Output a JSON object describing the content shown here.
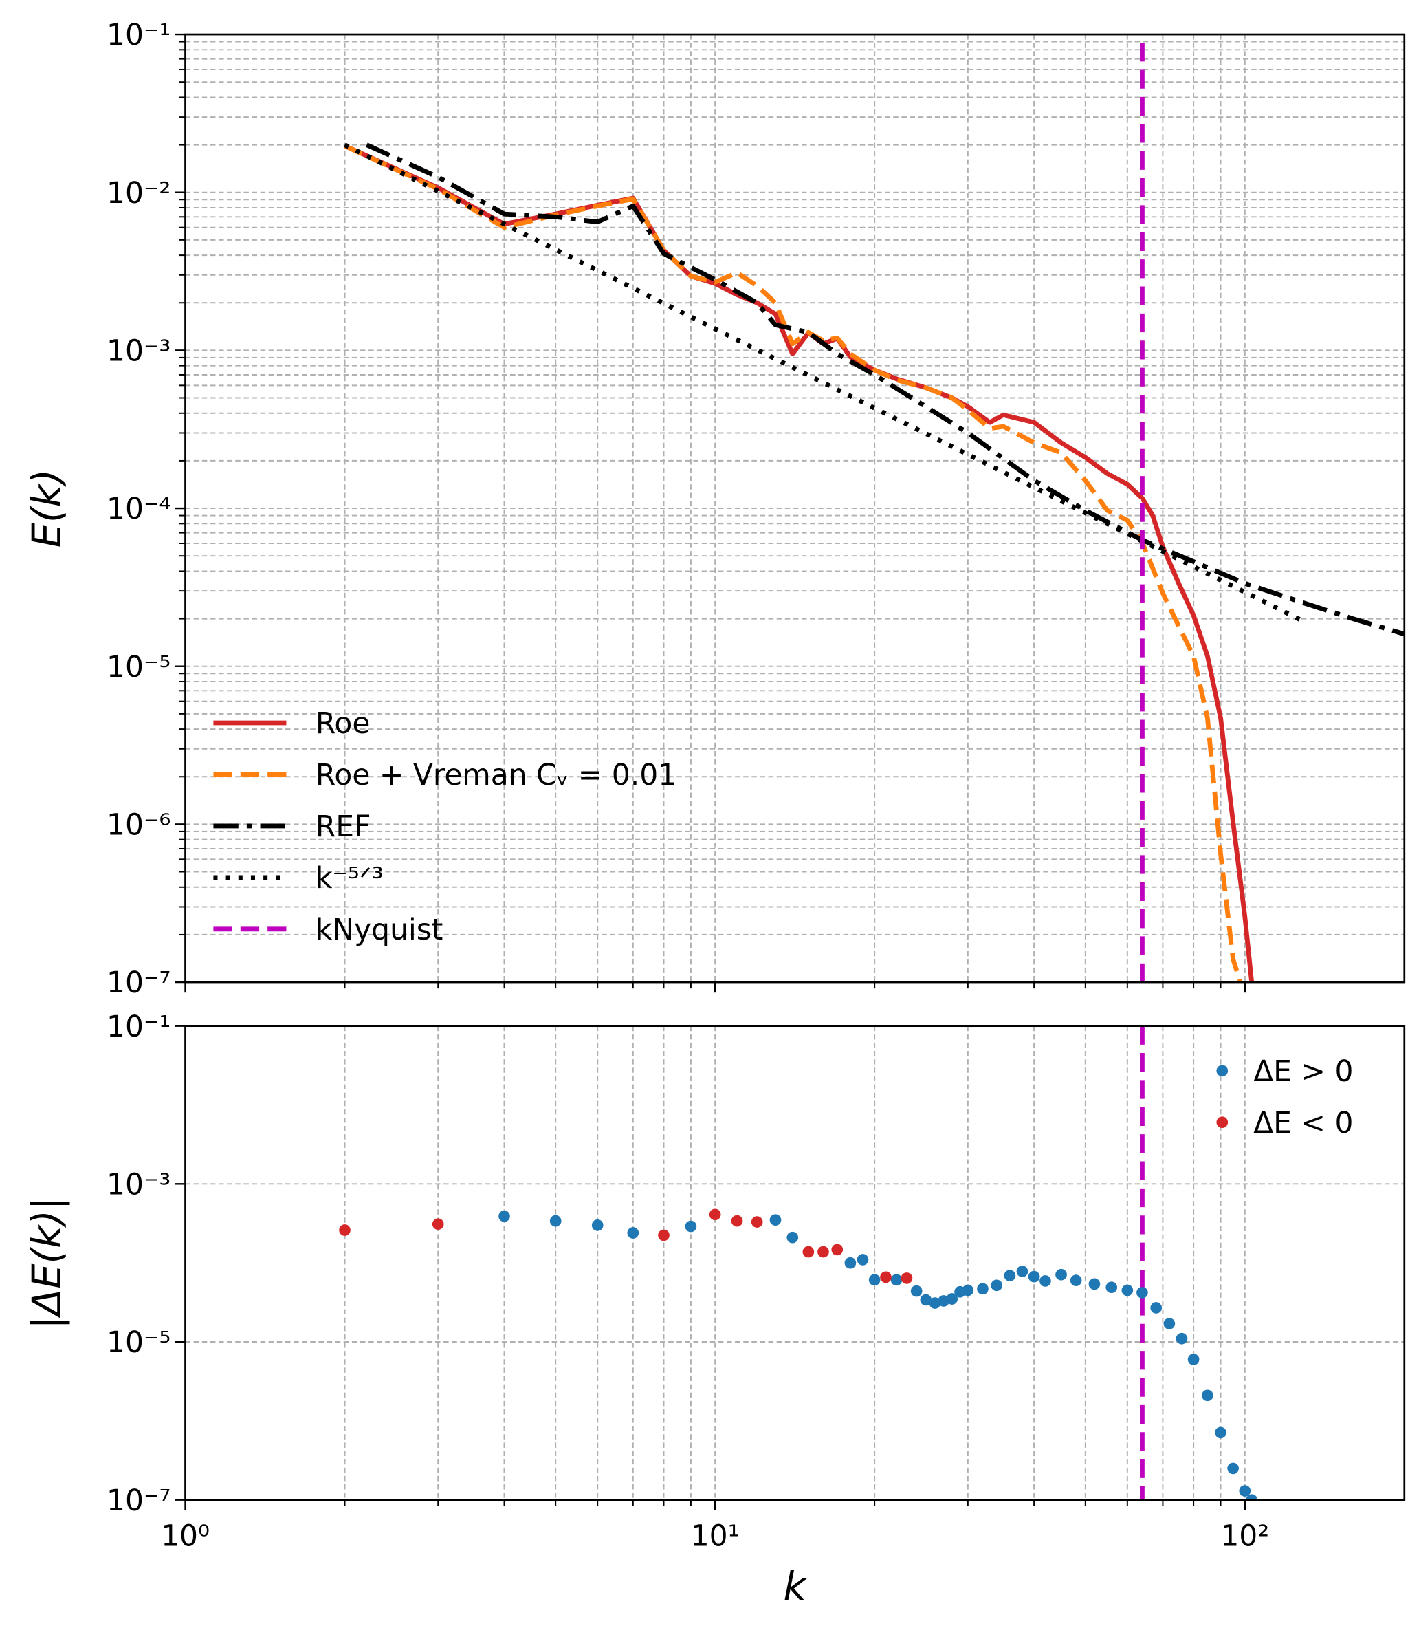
{
  "chart_data": [
    {
      "type": "line",
      "xlabel": "",
      "ylabel": "E(k)",
      "xscale": "log",
      "yscale": "log",
      "xlim": [
        1,
        200
      ],
      "ylim": [
        1e-07,
        0.1
      ],
      "xticks": [
        1,
        10,
        100
      ],
      "yticks": [
        {
          "value": 1e-07,
          "label": "10⁻⁷"
        },
        {
          "value": 1e-06,
          "label": "10⁻⁶"
        },
        {
          "value": 1e-05,
          "label": "10⁻⁵"
        },
        {
          "value": 0.0001,
          "label": "10⁻⁴"
        },
        {
          "value": 0.001,
          "label": "10⁻³"
        },
        {
          "value": 0.01,
          "label": "10⁻²"
        },
        {
          "value": 0.1,
          "label": "10⁻¹"
        }
      ],
      "grid": true,
      "minor_grid_x": true,
      "minor_grid_y": true,
      "legend": "lower left",
      "series": [
        {
          "name": "Roe",
          "color": "#d62728",
          "dash": "solid",
          "x": [
            2,
            3,
            4,
            5,
            6,
            7,
            8,
            9,
            10,
            11,
            12,
            13,
            14,
            15,
            16,
            17,
            18,
            20,
            22,
            25,
            28,
            30,
            33,
            35,
            40,
            45,
            50,
            55,
            60,
            64,
            67,
            70,
            75,
            80,
            85,
            90,
            95,
            100,
            103
          ],
          "values": [
            0.0197,
            0.0107,
            0.0063,
            0.0073,
            0.0083,
            0.0092,
            0.0043,
            0.00295,
            0.00265,
            0.00225,
            0.002,
            0.0017,
            0.00095,
            0.00129,
            0.0011,
            0.00119,
            0.00091,
            0.00075,
            0.00066,
            0.00058,
            0.0005,
            0.00044,
            0.00035,
            0.00039,
            0.00035,
            0.00026,
            0.00021,
            0.000166,
            0.000142,
            0.000116,
            9e-05,
            5.7e-05,
            3.35e-05,
            2.1e-05,
            1.16e-05,
            4.7e-06,
            1.03e-06,
            2.6e-07,
            1e-07
          ]
        },
        {
          "name": "Roe + Vreman Cᵥ = 0.01",
          "color": "#ff7f0e",
          "dash": "dashed",
          "x": [
            2,
            3,
            4,
            5,
            6,
            7,
            8,
            9,
            10,
            11,
            12,
            13,
            14,
            15,
            16,
            17,
            18,
            20,
            22,
            25,
            28,
            30,
            33,
            35,
            40,
            45,
            50,
            55,
            60,
            64,
            70,
            75,
            80,
            85,
            90,
            95,
            98
          ],
          "values": [
            0.0197,
            0.0105,
            0.006,
            0.0072,
            0.0082,
            0.0091,
            0.0043,
            0.00295,
            0.0027,
            0.0031,
            0.00256,
            0.002,
            0.0011,
            0.0013,
            0.00115,
            0.0012,
            0.00095,
            0.00075,
            0.00065,
            0.00058,
            0.0005,
            0.00042,
            0.00032,
            0.00033,
            0.00026,
            0.000225,
            0.00015,
            9.7e-05,
            8.4e-05,
            6.1e-05,
            2.9e-05,
            1.8e-05,
            1.16e-05,
            4.7e-06,
            6.5e-07,
            1.4e-07,
            1e-07
          ]
        },
        {
          "name": "REF",
          "color": "#000000",
          "dash": "dashdot",
          "x": [
            2.2,
            3,
            4,
            5,
            6,
            7,
            8,
            10,
            12,
            13,
            15,
            17,
            20,
            25,
            30,
            40,
            50,
            64,
            80,
            100,
            130,
            160,
            200
          ],
          "values": [
            0.02,
            0.0125,
            0.0073,
            0.007,
            0.0065,
            0.0082,
            0.0041,
            0.0028,
            0.002,
            0.00145,
            0.0013,
            0.00095,
            0.0007,
            0.00044,
            0.0003,
            0.00015,
            9.7e-05,
            6.3e-05,
            4.6e-05,
            3.35e-05,
            2.5e-05,
            2e-05,
            1.6e-05
          ]
        },
        {
          "name": "k⁻⁵ᐟ³",
          "color": "#000000",
          "dash": "dotted",
          "x": [
            2,
            128
          ],
          "values": [
            0.02,
            1.953e-05
          ]
        },
        {
          "name": "kNyquist",
          "color": "#bf00bf",
          "dash": "dashed",
          "x": [
            64,
            64
          ],
          "values": [
            1e-07,
            0.1
          ]
        }
      ]
    },
    {
      "type": "scatter",
      "xlabel": "k",
      "ylabel": "|ΔE(k)|",
      "xscale": "log",
      "yscale": "log",
      "xlim": [
        1,
        200
      ],
      "ylim": [
        1e-07,
        0.1
      ],
      "xticks": [
        {
          "value": 1,
          "label": "10⁰"
        },
        {
          "value": 10,
          "label": "10¹"
        },
        {
          "value": 100,
          "label": "10²"
        }
      ],
      "yticks": [
        {
          "value": 1e-07,
          "label": "10⁻⁷"
        },
        {
          "value": 1e-05,
          "label": "10⁻⁵"
        },
        {
          "value": 0.001,
          "label": "10⁻³"
        },
        {
          "value": 0.1,
          "label": "10⁻¹"
        }
      ],
      "grid": true,
      "minor_grid_x": true,
      "minor_grid_y": false,
      "legend": "upper right",
      "vlines": [
        {
          "x": 64,
          "color": "#bf00bf"
        }
      ],
      "series": [
        {
          "name": "ΔE > 0",
          "color": "#1f77b4",
          "x": [
            4,
            5,
            6,
            7,
            9,
            13,
            14,
            18,
            19,
            20,
            22,
            24,
            25,
            26,
            27,
            28,
            29,
            30,
            32,
            34,
            36,
            38,
            40,
            42,
            45,
            48,
            52,
            56,
            60,
            64,
            68,
            72,
            76,
            80,
            85,
            90,
            95,
            100,
            103
          ],
          "values": [
            0.00039,
            0.00034,
            0.0003,
            0.00024,
            0.00029,
            0.00035,
            0.00021,
            0.0001,
            0.00011,
            6.1e-05,
            6.1e-05,
            4.4e-05,
            3.4e-05,
            3.1e-05,
            3.3e-05,
            3.5e-05,
            4.3e-05,
            4.5e-05,
            4.7e-05,
            5.2e-05,
            6.9e-05,
            7.8e-05,
            6.7e-05,
            5.9e-05,
            7.1e-05,
            6e-05,
            5.4e-05,
            4.9e-05,
            4.5e-05,
            4.2e-05,
            2.7e-05,
            1.7e-05,
            1.1e-05,
            6e-06,
            2.1e-06,
            7.1e-07,
            2.5e-07,
            1.3e-07,
            1e-07
          ]
        },
        {
          "name": "ΔE < 0",
          "color": "#d62728",
          "x": [
            2,
            3,
            8,
            10,
            11,
            12,
            15,
            16,
            17,
            21,
            23
          ],
          "values": [
            0.00026,
            0.00031,
            0.000224,
            0.00041,
            0.00034,
            0.00033,
            0.000138,
            0.000138,
            0.000147,
            6.6e-05,
            6.4e-05
          ]
        }
      ]
    }
  ]
}
